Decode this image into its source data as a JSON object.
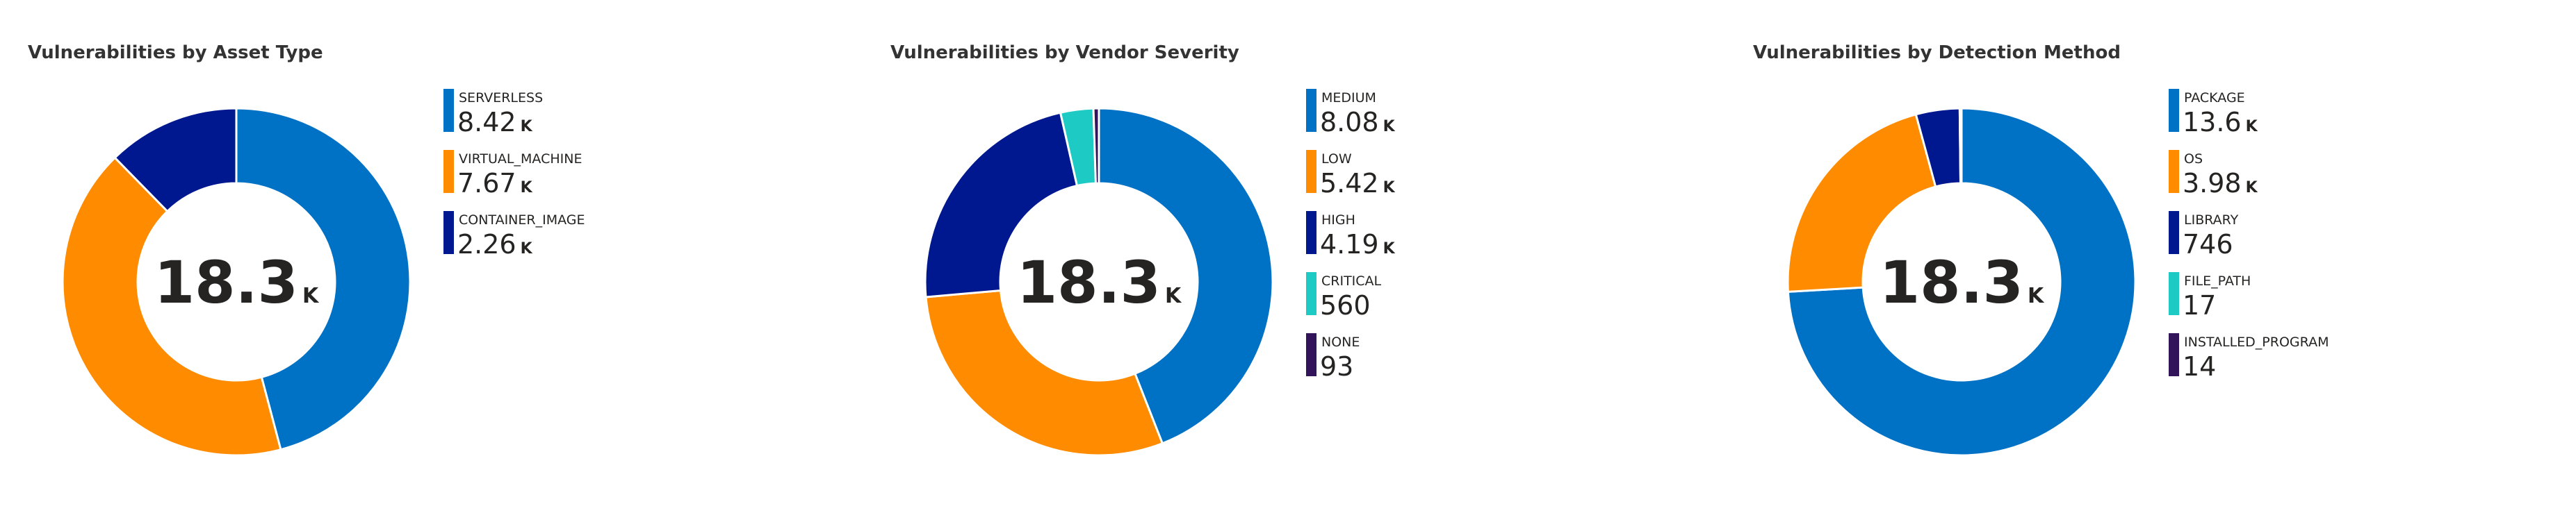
{
  "chart_data": [
    {
      "type": "pie",
      "donut": true,
      "title": "Vulnerabilities by Asset Type",
      "categories": [
        "SERVERLESS",
        "VIRTUAL_MACHINE",
        "CONTAINER_IMAGE"
      ],
      "values": [
        8420,
        7670,
        2260
      ],
      "value_labels": [
        {
          "number": "8.42",
          "unit": "K"
        },
        {
          "number": "7.67",
          "unit": "K"
        },
        {
          "number": "2.26",
          "unit": "K"
        }
      ],
      "colors": [
        "#0072c6",
        "#ff8c00",
        "#00188f"
      ],
      "center_label": {
        "number": "18.3",
        "unit": "K"
      }
    },
    {
      "type": "pie",
      "donut": true,
      "title": "Vulnerabilities by Vendor Severity",
      "categories": [
        "MEDIUM",
        "LOW",
        "HIGH",
        "CRITICAL",
        "NONE"
      ],
      "values": [
        8080,
        5420,
        4190,
        560,
        93
      ],
      "value_labels": [
        {
          "number": "8.08",
          "unit": "K"
        },
        {
          "number": "5.42",
          "unit": "K"
        },
        {
          "number": "4.19",
          "unit": "K"
        },
        "560",
        "93"
      ],
      "colors": [
        "#0072c6",
        "#ff8c00",
        "#00188f",
        "#1ecbc4",
        "#32145a"
      ],
      "center_label": {
        "number": "18.3",
        "unit": "K"
      }
    },
    {
      "type": "pie",
      "donut": true,
      "title": "Vulnerabilities by Detection Method",
      "categories": [
        "PACKAGE",
        "OS",
        "LIBRARY",
        "FILE_PATH",
        "INSTALLED_PROGRAM"
      ],
      "values": [
        13600,
        3980,
        746,
        17,
        14
      ],
      "value_labels": [
        {
          "number": "13.6",
          "unit": "K"
        },
        {
          "number": "3.98",
          "unit": "K"
        },
        "746",
        "17",
        "14"
      ],
      "colors": [
        "#0072c6",
        "#ff8c00",
        "#00188f",
        "#1ecbc4",
        "#32145a"
      ],
      "center_label": {
        "number": "18.3",
        "unit": "K"
      }
    }
  ]
}
